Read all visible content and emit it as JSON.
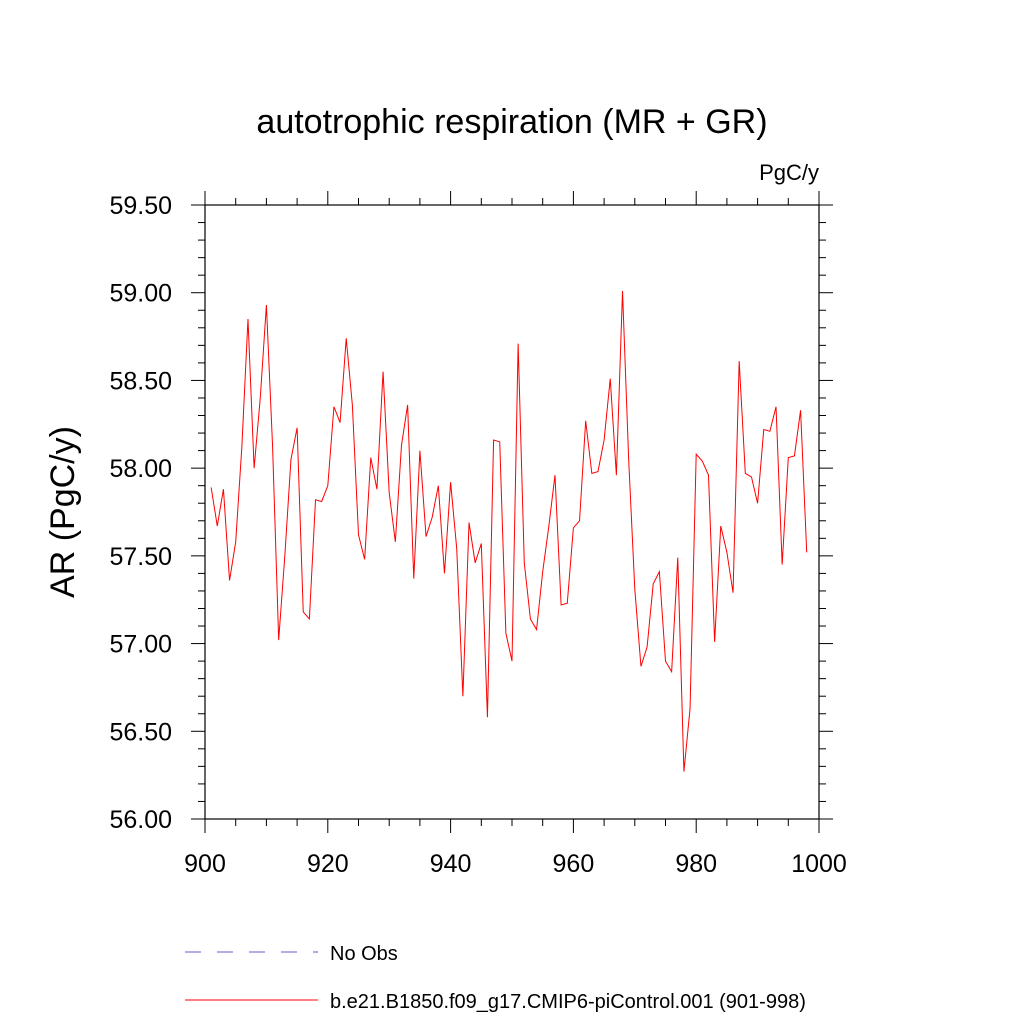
{
  "chart_data": {
    "type": "line",
    "title": "autotrophic respiration (MR + GR)",
    "units": "PgC/y",
    "ylabel": "AR  (PgC/y)",
    "xlabel": "",
    "xlim": [
      900,
      1000
    ],
    "ylim": [
      56.0,
      59.5
    ],
    "x_ticks": [
      900,
      920,
      940,
      960,
      980,
      1000
    ],
    "y_ticks": [
      56.0,
      56.5,
      57.0,
      57.5,
      58.0,
      58.5,
      59.0,
      59.5
    ],
    "y_tick_labels": [
      "56.00",
      "56.50",
      "57.00",
      "57.50",
      "58.00",
      "58.50",
      "59.00",
      "59.50"
    ],
    "grid": false,
    "legend_position": "bottom",
    "series": [
      {
        "name": "No Obs",
        "color": "#6a5acd",
        "style": "dashed",
        "x": [],
        "values": []
      },
      {
        "name": "b.e21.B1850.f09_g17.CMIP6-piControl.001 (901-998)",
        "color": "#ff0000",
        "style": "solid",
        "x": [
          901,
          902,
          903,
          904,
          905,
          906,
          907,
          908,
          909,
          910,
          911,
          912,
          913,
          914,
          915,
          916,
          917,
          918,
          919,
          920,
          921,
          922,
          923,
          924,
          925,
          926,
          927,
          928,
          929,
          930,
          931,
          932,
          933,
          934,
          935,
          936,
          937,
          938,
          939,
          940,
          941,
          942,
          943,
          944,
          945,
          946,
          947,
          948,
          949,
          950,
          951,
          952,
          953,
          954,
          955,
          956,
          957,
          958,
          959,
          960,
          961,
          962,
          963,
          964,
          965,
          966,
          967,
          968,
          969,
          970,
          971,
          972,
          973,
          974,
          975,
          976,
          977,
          978,
          979,
          980,
          981,
          982,
          983,
          984,
          985,
          986,
          987,
          988,
          989,
          990,
          991,
          992,
          993,
          994,
          995,
          996,
          997,
          998
        ],
        "values": [
          57.89,
          57.67,
          57.88,
          57.36,
          57.58,
          58.12,
          58.85,
          58.0,
          58.4,
          58.93,
          58.13,
          57.02,
          57.5,
          58.05,
          58.23,
          57.18,
          57.14,
          57.82,
          57.81,
          57.9,
          58.35,
          58.26,
          58.74,
          58.36,
          57.62,
          57.48,
          58.06,
          57.88,
          58.55,
          57.86,
          57.58,
          58.13,
          58.36,
          57.37,
          58.1,
          57.61,
          57.72,
          57.9,
          57.4,
          57.92,
          57.54,
          56.7,
          57.69,
          57.46,
          57.57,
          56.58,
          58.16,
          58.15,
          57.06,
          56.9,
          58.71,
          57.46,
          57.14,
          57.08,
          57.41,
          57.67,
          57.96,
          57.22,
          57.23,
          57.66,
          57.7,
          58.27,
          57.97,
          57.98,
          58.16,
          58.51,
          57.96,
          59.01,
          58.05,
          57.31,
          56.87,
          56.98,
          57.34,
          57.41,
          56.9,
          56.84,
          57.49,
          56.27,
          56.63,
          58.08,
          58.04,
          57.96,
          57.01,
          57.67,
          57.52,
          57.29,
          58.61,
          57.97,
          57.95,
          57.8,
          58.22,
          58.21,
          58.35,
          57.45,
          58.06,
          58.07,
          58.33,
          57.52
        ]
      }
    ]
  }
}
